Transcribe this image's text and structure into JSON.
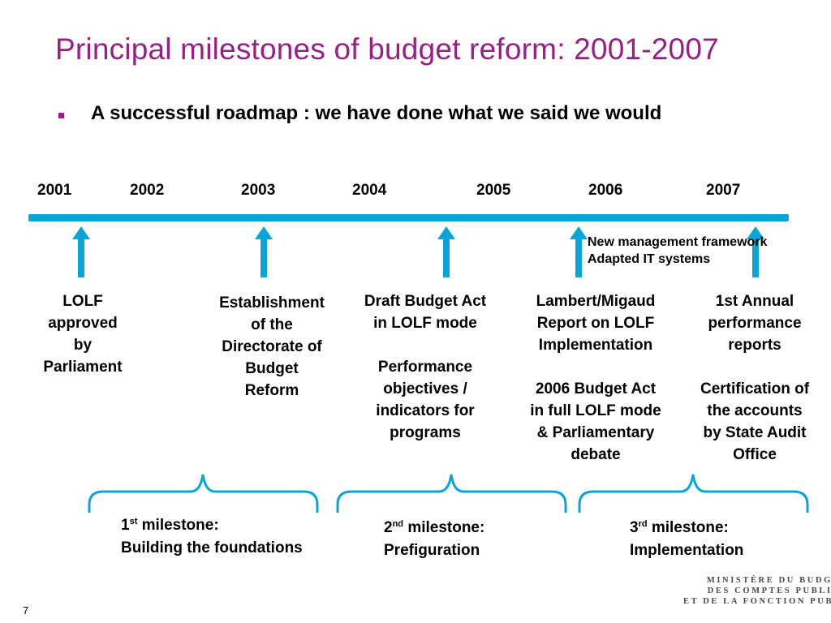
{
  "title": "Principal milestones of budget reform: 2001-2007",
  "subtitle": "A successful roadmap : we have done what we said we would",
  "years": [
    "2001",
    "2002",
    "2003",
    "2004",
    "2005",
    "2006",
    "2007"
  ],
  "events": [
    {
      "lines": [
        "LOLF",
        "approved",
        "by",
        "Parliament"
      ]
    },
    {
      "lines": [
        "Establishment",
        "of the",
        "Directorate of",
        "Budget",
        "Reform"
      ]
    },
    {
      "lines": [
        "Draft Budget Act",
        "in LOLF mode"
      ],
      "lines2": [
        "Performance",
        "objectives /",
        "indicators for",
        "programs"
      ]
    },
    {
      "lines": [
        "Lambert/Migaud",
        "Report on LOLF",
        "Implementation"
      ],
      "lines2": [
        "2006  Budget Act",
        "in full LOLF mode",
        "& Parliamentary",
        "debate"
      ]
    },
    {
      "lines": [
        "1st Annual",
        "performance",
        "reports"
      ],
      "lines2": [
        "Certification of",
        "the accounts",
        "by State Audit",
        "Office"
      ]
    }
  ],
  "note": {
    "line1": "New management framework",
    "line2": "Adapted IT systems"
  },
  "milestones": [
    {
      "ordinal": "1",
      "suffix": "st",
      "label": "milestone:",
      "desc": "Building the foundations"
    },
    {
      "ordinal": "2",
      "suffix": "nd",
      "label": "milestone:",
      "desc": "Prefiguration"
    },
    {
      "ordinal": "3",
      "suffix": "rd",
      "label": "milestone:",
      "desc": "Implementation"
    }
  ],
  "logo": {
    "line1": "MINISTÈRE DU BUDGET",
    "line2": "DES COMPTES PUBLICS",
    "line3": "ET DE LA FONCTION PUBLIQUE"
  },
  "page_number": "7",
  "colors": {
    "title": "#9a1e86",
    "timeline": "#0aa5d8",
    "arrow": "#0aa5d8",
    "brace": "#0aa5d8"
  }
}
